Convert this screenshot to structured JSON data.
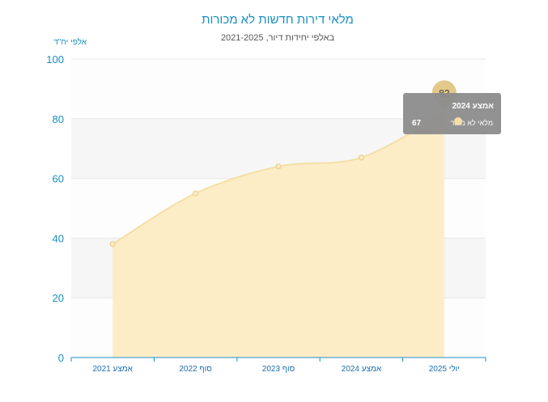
{
  "chart_data": {
    "type": "area",
    "title": "מלאי דירות חדשות לא מכורות",
    "subtitle": "באלפי יחידות דיור, 2021-2025",
    "unit_label": "אלפי יח\"ד",
    "categories": [
      "אמצע 2021",
      "סוף 2022",
      "סוף 2023",
      "אמצע 2024",
      "יולי 2025"
    ],
    "series": [
      {
        "name": "מלאי לא מכור",
        "values": [
          38,
          55,
          64,
          67,
          82
        ]
      }
    ],
    "ylim": [
      0,
      100
    ],
    "yticks": [
      0,
      20,
      40,
      60,
      80,
      100
    ],
    "grid": true,
    "highlight": {
      "index": 4,
      "label": "82"
    },
    "tooltip": {
      "category": "אמצע 2024",
      "series_name": "מלאי לא מכור",
      "value": "67"
    },
    "colors": {
      "title": "#1a8fc0",
      "axis": "#1a8fc0",
      "area_fill": "#fdecc4",
      "line": "#f6dfa6",
      "marker": "#e9cf8e",
      "bubble": "#e2c98a",
      "tooltip_bg": "#8c8c8c",
      "band": "#f6f6f6"
    }
  }
}
